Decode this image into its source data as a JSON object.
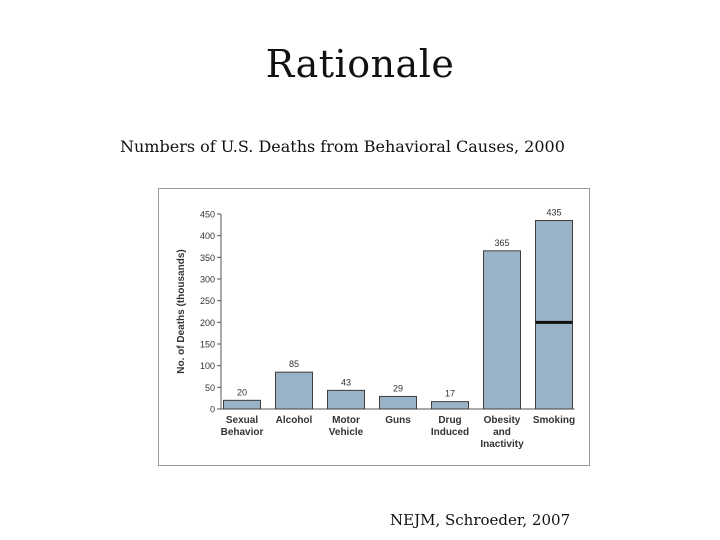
{
  "slide": {
    "title": "Rationale",
    "subtitle": "Numbers of U.S. Deaths from Behavioral Causes, 2000",
    "citation": "NEJM, Schroeder, 2007"
  },
  "chart_data": {
    "type": "bar",
    "title": "",
    "xlabel": "",
    "ylabel": "No. of Deaths (thousands)",
    "ylim": [
      0,
      450
    ],
    "yticks": [
      0,
      50,
      100,
      150,
      200,
      250,
      300,
      350,
      400,
      450
    ],
    "categories": [
      [
        "Sexual",
        "Behavior"
      ],
      [
        "Alcohol"
      ],
      [
        "Motor",
        "Vehicle"
      ],
      [
        "Guns"
      ],
      [
        "Drug",
        "Induced"
      ],
      [
        "Obesity",
        "and",
        "Inactivity"
      ],
      [
        "Smoking"
      ]
    ],
    "values": [
      20,
      85,
      43,
      29,
      17,
      365,
      435
    ],
    "value_labels": [
      "20",
      "85",
      "43",
      "29",
      "17",
      "365",
      "435"
    ],
    "reference_marks": [
      {
        "category_index": 6,
        "value": 200
      }
    ],
    "grid": false,
    "legend": "none",
    "colors": {
      "bar_fill": "#9bb3c7",
      "bar_stroke": "#3d3d3d",
      "axis": "#555555",
      "mark": "#111111",
      "text": "#333333"
    }
  }
}
